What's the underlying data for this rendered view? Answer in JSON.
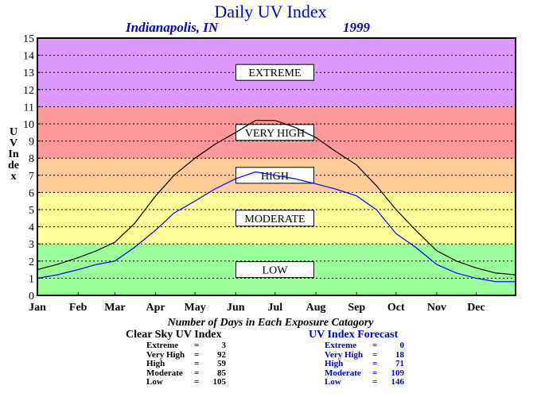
{
  "title": "Daily UV Index",
  "subtitle_city": "Indianapolis, IN",
  "subtitle_year": "1999",
  "ylabel": "UV Index",
  "days_title": "Number of Days in Each Exposure Catagory",
  "colors": {
    "title": "#0000cc",
    "clear_sky_line": "#000000",
    "forecast_line": "#0000ff",
    "band_low": "#99ff99",
    "band_moderate": "#ffff99",
    "band_high": "#ffcc99",
    "band_very_high": "#ff9999",
    "band_extreme": "#dd99ff"
  },
  "clear_sky_table": {
    "title": "Clear Sky UV Index",
    "rows": [
      {
        "label": "Extreme",
        "value": "3"
      },
      {
        "label": "Very High",
        "value": "92"
      },
      {
        "label": "High",
        "value": "59"
      },
      {
        "label": "Moderate",
        "value": "85"
      },
      {
        "label": "Low",
        "value": "105"
      }
    ]
  },
  "forecast_table": {
    "title": "UV Index Forecast",
    "rows": [
      {
        "label": "Extreme",
        "value": "0"
      },
      {
        "label": "Very High",
        "value": "18"
      },
      {
        "label": "High",
        "value": "71"
      },
      {
        "label": "Moderate",
        "value": "109"
      },
      {
        "label": "Low",
        "value": "146"
      }
    ]
  },
  "chart_data": {
    "type": "line",
    "title": "Daily UV Index",
    "xlabel": "",
    "ylabel": "UV Index",
    "ylim": [
      0,
      15
    ],
    "yticks": [
      0,
      1,
      2,
      3,
      4,
      5,
      6,
      7,
      8,
      9,
      10,
      11,
      12,
      13,
      14,
      15
    ],
    "xlim": [
      1,
      365
    ],
    "grid": true,
    "month_labels": [
      "Jan",
      "Feb",
      "Mar",
      "Apr",
      "May",
      "Jun",
      "Jul",
      "Aug",
      "Sep",
      "Oct",
      "Nov",
      "Dec"
    ],
    "month_start_days": [
      1,
      32,
      60,
      91,
      121,
      152,
      182,
      213,
      244,
      274,
      305,
      335
    ],
    "bands": [
      {
        "label": "LOW",
        "from": 0,
        "to": 3,
        "color": "#99ff99"
      },
      {
        "label": "MODERATE",
        "from": 3,
        "to": 6,
        "color": "#ffff99"
      },
      {
        "label": "HIGH",
        "from": 6,
        "to": 8,
        "color": "#ffcc99"
      },
      {
        "label": "VERY HIGH",
        "from": 8,
        "to": 11,
        "color": "#ff9999"
      },
      {
        "label": "EXTREME",
        "from": 11,
        "to": 15,
        "color": "#dd99ff"
      }
    ],
    "series": [
      {
        "name": "Clear Sky UV Index",
        "color": "#000000",
        "x": [
          1,
          16,
          32,
          46,
          60,
          75,
          91,
          105,
          121,
          136,
          152,
          167,
          182,
          197,
          213,
          228,
          244,
          259,
          274,
          289,
          305,
          320,
          335,
          350,
          365
        ],
        "y": [
          1.5,
          1.8,
          2.2,
          2.6,
          3.1,
          4.2,
          5.8,
          7.0,
          8.0,
          8.8,
          9.5,
          10.2,
          10.2,
          9.8,
          9.2,
          8.4,
          7.6,
          6.4,
          5.0,
          3.8,
          2.6,
          2.0,
          1.6,
          1.3,
          1.2
        ]
      },
      {
        "name": "UV Index Forecast",
        "color": "#0000ff",
        "x": [
          1,
          16,
          32,
          46,
          60,
          75,
          91,
          105,
          121,
          136,
          152,
          167,
          182,
          197,
          213,
          228,
          244,
          259,
          274,
          289,
          305,
          320,
          335,
          350,
          365
        ],
        "y": [
          1.0,
          1.2,
          1.5,
          1.8,
          2.0,
          2.8,
          3.8,
          4.8,
          5.5,
          6.2,
          6.8,
          7.2,
          7.0,
          6.8,
          6.5,
          6.2,
          5.8,
          5.0,
          3.6,
          2.8,
          1.8,
          1.3,
          1.0,
          0.8,
          0.8
        ]
      }
    ]
  }
}
